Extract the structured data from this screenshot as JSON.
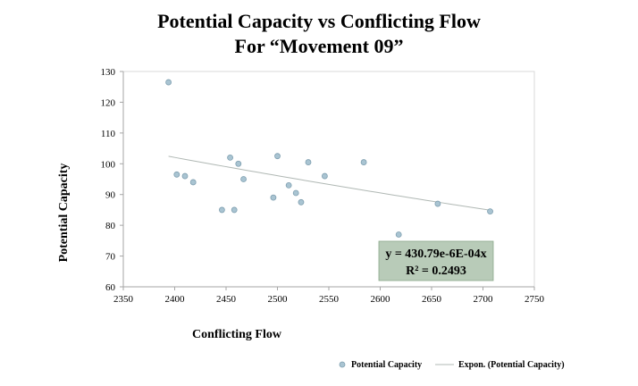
{
  "chart_data": {
    "type": "scatter",
    "title_line1": "Potential Capacity vs Conflicting Flow",
    "title_line2": "For “Movement 09”",
    "xlabel": "Conflicting Flow",
    "ylabel": "Potential Capacity",
    "xlim": [
      2350,
      2750
    ],
    "ylim": [
      60,
      130
    ],
    "xticks": [
      2350,
      2400,
      2450,
      2500,
      2550,
      2600,
      2650,
      2700,
      2750
    ],
    "yticks": [
      60,
      70,
      80,
      90,
      100,
      110,
      120,
      130
    ],
    "grid": false,
    "series": [
      {
        "name": "Potential Capacity",
        "kind": "points",
        "color": "#a9c4d2",
        "points": [
          [
            2394,
            126.5
          ],
          [
            2402,
            96.5
          ],
          [
            2410,
            96
          ],
          [
            2418,
            94
          ],
          [
            2446,
            85
          ],
          [
            2454,
            102
          ],
          [
            2458,
            85
          ],
          [
            2462,
            100
          ],
          [
            2467,
            95
          ],
          [
            2496,
            89
          ],
          [
            2500,
            102.5
          ],
          [
            2511,
            93
          ],
          [
            2518,
            90.5
          ],
          [
            2523,
            87.5
          ],
          [
            2530,
            100.5
          ],
          [
            2546,
            96
          ],
          [
            2584,
            100.5
          ],
          [
            2618,
            77
          ],
          [
            2656,
            87
          ],
          [
            2707,
            84.5
          ]
        ]
      },
      {
        "name": "Expon. (Potential Capacity)",
        "kind": "trendline",
        "color": "#b0b8b4",
        "a": 430.79,
        "b": -0.0006,
        "x_range": [
          2394,
          2707
        ]
      }
    ],
    "annotation": {
      "line1": "y = 430.79e-6E-04x",
      "line2": "R² = 0.2493",
      "background": "#b8cbb8"
    },
    "legend_position": "bottom-right"
  }
}
